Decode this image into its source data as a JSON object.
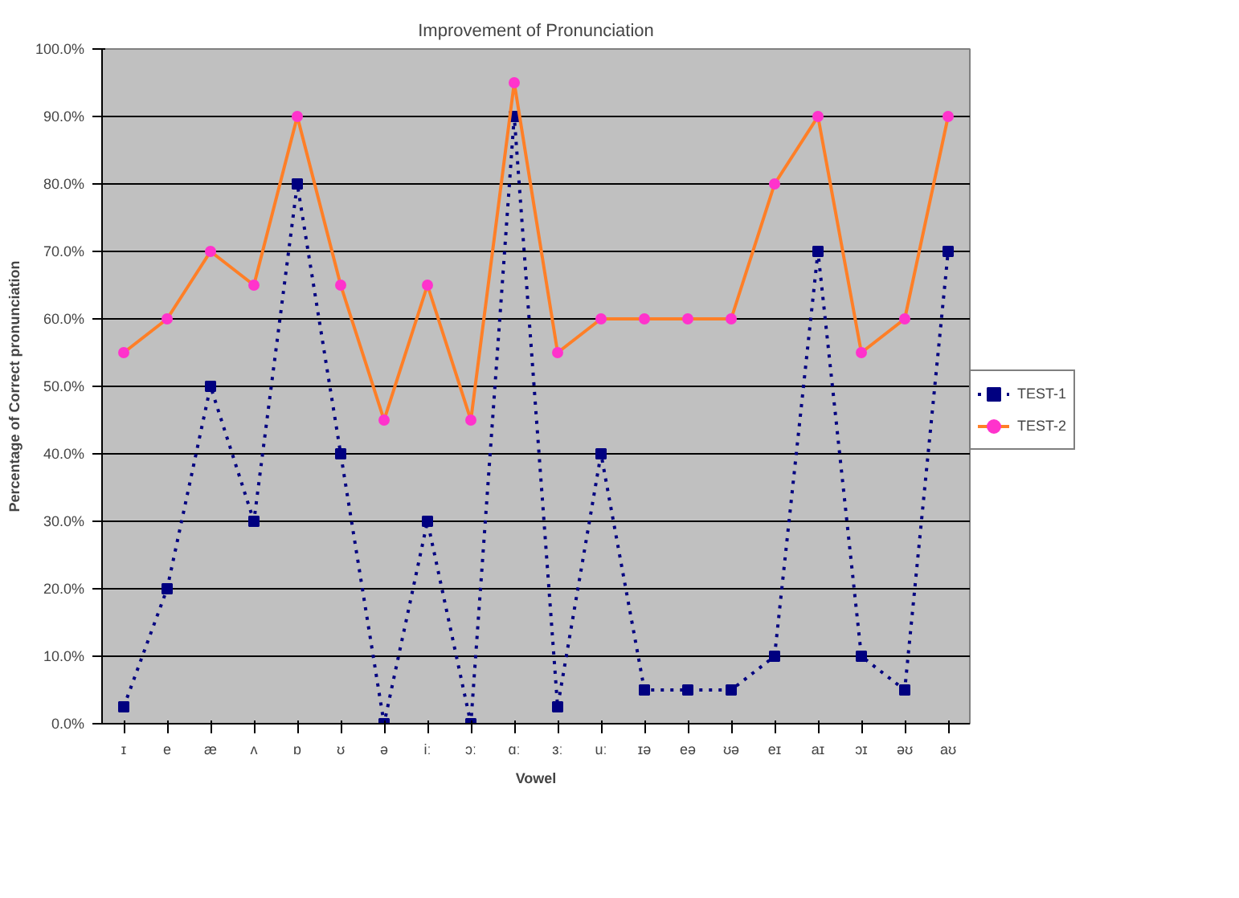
{
  "chart_data": {
    "type": "line",
    "title": "Improvement of Pronunciation",
    "xlabel": "Vowel",
    "ylabel": "Percentage of Correct pronunciation",
    "categories": [
      "ɪ",
      "e",
      "æ",
      "ʌ",
      "ɒ",
      "ʊ",
      "ə",
      "iː",
      "ɔː",
      "ɑː",
      "ɜː",
      "uː",
      "ɪə",
      "eə",
      "ʊə",
      "eɪ",
      "aɪ",
      "ɔɪ",
      "əʊ",
      "aʊ"
    ],
    "series": [
      {
        "name": "TEST-1",
        "color": "#000080",
        "marker": "square",
        "line_style": "dotted",
        "values": [
          2.5,
          20,
          50,
          30,
          80,
          40,
          0,
          30,
          0,
          90,
          2.5,
          40,
          5,
          5,
          5,
          10,
          70,
          10,
          5,
          70
        ]
      },
      {
        "name": "TEST-2",
        "color": "#ff7f27",
        "marker": "circle",
        "line_style": "solid",
        "values": [
          55,
          60,
          70,
          65,
          90,
          65,
          45,
          65,
          45,
          95,
          55,
          60,
          60,
          60,
          60,
          80,
          90,
          55,
          60,
          90
        ]
      }
    ],
    "ylim": [
      0,
      100
    ],
    "yticks": [
      {
        "value": 0,
        "label": "0.0%"
      },
      {
        "value": 10,
        "label": "10.0%"
      },
      {
        "value": 20,
        "label": "20.0%"
      },
      {
        "value": 30,
        "label": "30.0%"
      },
      {
        "value": 40,
        "label": "40.0%"
      },
      {
        "value": 50,
        "label": "50.0%"
      },
      {
        "value": 60,
        "label": "60.0%"
      },
      {
        "value": 70,
        "label": "70.0%"
      },
      {
        "value": 80,
        "label": "80.0%"
      },
      {
        "value": 90,
        "label": "90.0%"
      },
      {
        "value": 100,
        "label": "100.0%"
      }
    ],
    "grid": "y",
    "legend": "right"
  }
}
